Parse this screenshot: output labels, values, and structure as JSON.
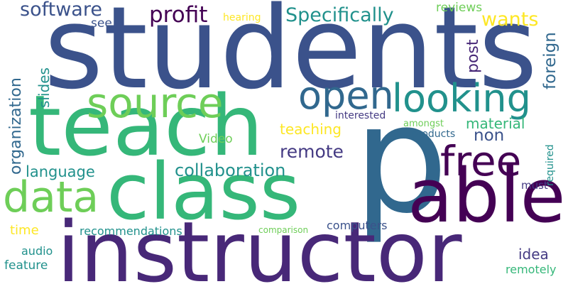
{
  "words": {
    "students": "students",
    "teach": "teach",
    "p": "p",
    "instructor": "instructor",
    "class": "class",
    "able": "able",
    "source": "source",
    "open": "open",
    "looking": "looking",
    "data": "data",
    "free": "free",
    "collaboration": "collaboration",
    "specifically": "Specifically",
    "software": "software",
    "profit": "profit",
    "remote": "remote",
    "organization": "organization",
    "language": "language",
    "foreign": "foreign",
    "wants": "wants",
    "post": "post",
    "slides": "slides",
    "see": "see",
    "hearing": "hearing",
    "reviews": "reviews",
    "non": "non",
    "material": "material",
    "teaching": "teaching",
    "video": "Video",
    "interested": "interested",
    "amongst": "amongst",
    "products": "products",
    "required": "required",
    "must": "must",
    "idea": "idea",
    "time": "time",
    "recommendations": "recommendations",
    "comparison": "comparison",
    "computers": "computers",
    "audio": "audio",
    "feature": "feature",
    "remotely": "remotely"
  },
  "palette": [
    "#440154",
    "#482878",
    "#443a83",
    "#3b528b",
    "#31688e",
    "#21918c",
    "#1f9e89",
    "#35b779",
    "#6ece58",
    "#fde725"
  ]
}
